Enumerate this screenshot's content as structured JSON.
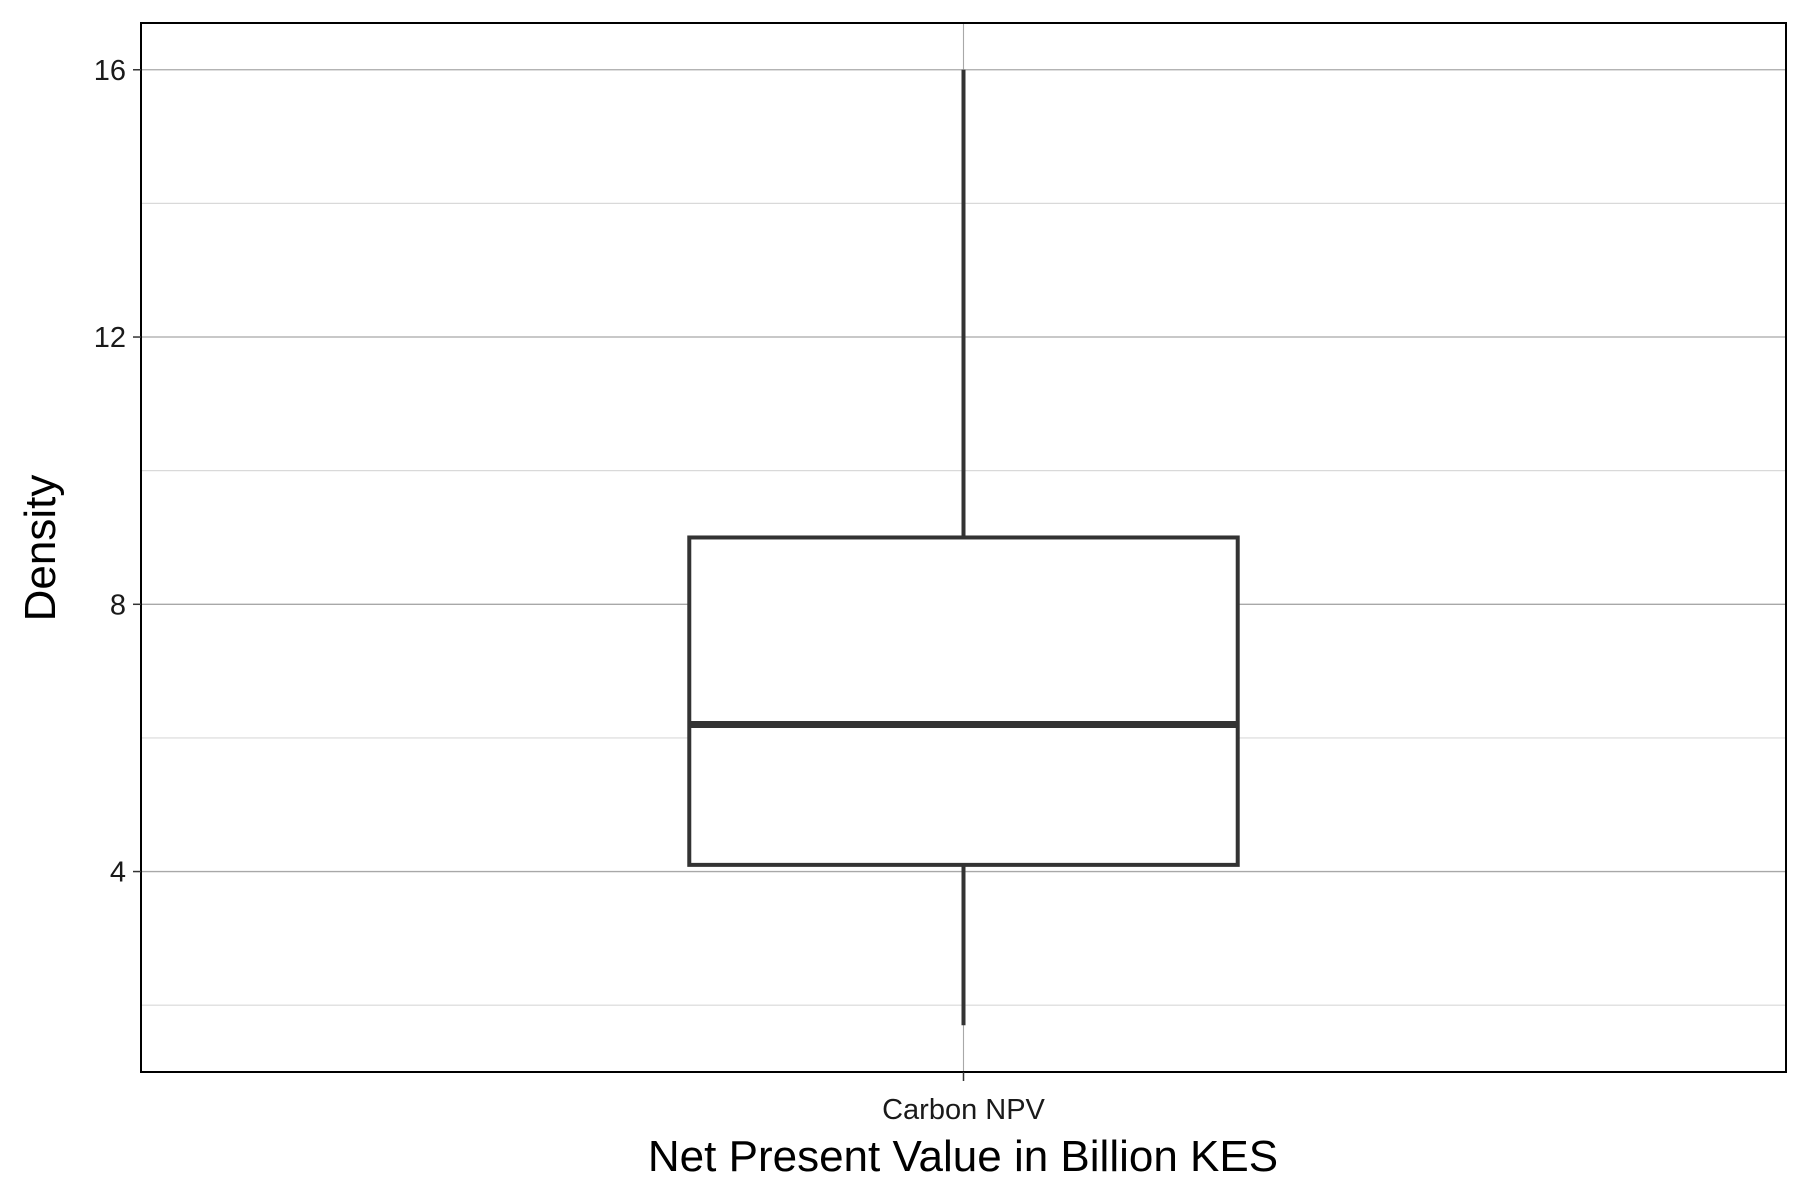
{
  "chart_data": {
    "type": "boxplot",
    "xlabel": "Net Present Value in Billion KES",
    "ylabel": "Density",
    "categories": [
      "Carbon NPV"
    ],
    "boxes": [
      {
        "category": "Carbon NPV",
        "whisker_low": 1.7,
        "q1": 4.1,
        "median": 6.2,
        "q3": 9.0,
        "whisker_high": 16.0
      }
    ],
    "ylim": [
      1.0,
      16.7
    ],
    "yticks": [
      4,
      8,
      12,
      16
    ],
    "y_minor_ticks": [
      2,
      6,
      10,
      14
    ],
    "grid": true,
    "legend": "none",
    "colors": {
      "box_stroke": "#333333",
      "grid_major": "#a8a8a8",
      "grid_minor": "#d9d9d9",
      "panel_border": "#000000",
      "background": "#ffffff"
    }
  }
}
